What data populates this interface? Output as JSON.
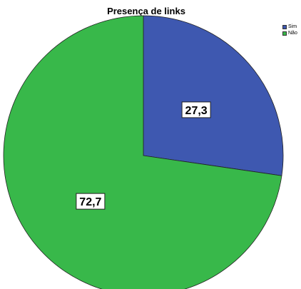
{
  "chart_data": {
    "type": "pie",
    "title": "Presença de links",
    "categories": [
      "Sim",
      "Não"
    ],
    "values": [
      27.3,
      72.7
    ],
    "data_labels": [
      "27,3",
      "72,7"
    ],
    "colors": [
      "#3e58b0",
      "#38b84a"
    ],
    "start_angle_deg": 0,
    "direction": "clockwise",
    "legend_position": "top-right"
  }
}
